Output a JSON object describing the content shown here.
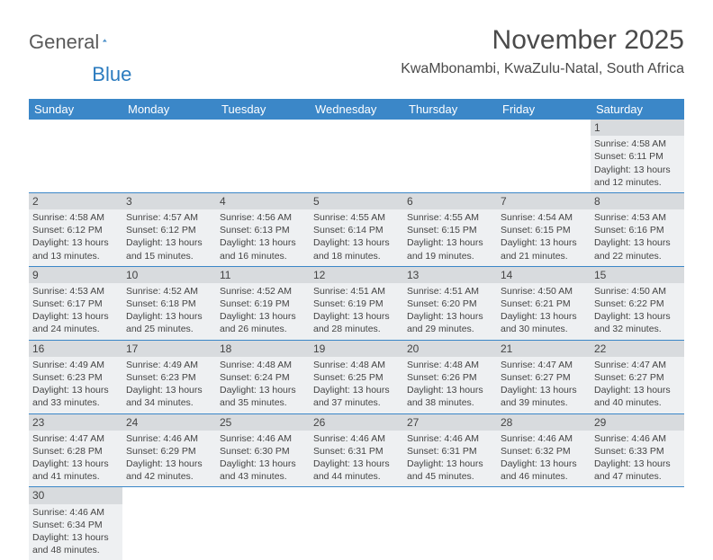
{
  "logo": {
    "word1": "General",
    "word2": "Blue"
  },
  "title": "November 2025",
  "subtitle": "KwaMbonambi, KwaZulu-Natal, South Africa",
  "colors": {
    "header_bg": "#3b87c8",
    "header_fg": "#ffffff",
    "daynum_bg": "#d8dbde",
    "day_bg": "#eef0f2",
    "rule": "#3b87c8",
    "text": "#444444",
    "title_color": "#4a4a4a"
  },
  "day_labels": [
    "Sunday",
    "Monday",
    "Tuesday",
    "Wednesday",
    "Thursday",
    "Friday",
    "Saturday"
  ],
  "weeks": [
    [
      {
        "n": "",
        "empty": true
      },
      {
        "n": "",
        "empty": true
      },
      {
        "n": "",
        "empty": true
      },
      {
        "n": "",
        "empty": true
      },
      {
        "n": "",
        "empty": true
      },
      {
        "n": "",
        "empty": true
      },
      {
        "n": "1",
        "sunrise": "Sunrise: 4:58 AM",
        "sunset": "Sunset: 6:11 PM",
        "day1": "Daylight: 13 hours",
        "day2": "and 12 minutes."
      }
    ],
    [
      {
        "n": "2",
        "sunrise": "Sunrise: 4:58 AM",
        "sunset": "Sunset: 6:12 PM",
        "day1": "Daylight: 13 hours",
        "day2": "and 13 minutes."
      },
      {
        "n": "3",
        "sunrise": "Sunrise: 4:57 AM",
        "sunset": "Sunset: 6:12 PM",
        "day1": "Daylight: 13 hours",
        "day2": "and 15 minutes."
      },
      {
        "n": "4",
        "sunrise": "Sunrise: 4:56 AM",
        "sunset": "Sunset: 6:13 PM",
        "day1": "Daylight: 13 hours",
        "day2": "and 16 minutes."
      },
      {
        "n": "5",
        "sunrise": "Sunrise: 4:55 AM",
        "sunset": "Sunset: 6:14 PM",
        "day1": "Daylight: 13 hours",
        "day2": "and 18 minutes."
      },
      {
        "n": "6",
        "sunrise": "Sunrise: 4:55 AM",
        "sunset": "Sunset: 6:15 PM",
        "day1": "Daylight: 13 hours",
        "day2": "and 19 minutes."
      },
      {
        "n": "7",
        "sunrise": "Sunrise: 4:54 AM",
        "sunset": "Sunset: 6:15 PM",
        "day1": "Daylight: 13 hours",
        "day2": "and 21 minutes."
      },
      {
        "n": "8",
        "sunrise": "Sunrise: 4:53 AM",
        "sunset": "Sunset: 6:16 PM",
        "day1": "Daylight: 13 hours",
        "day2": "and 22 minutes."
      }
    ],
    [
      {
        "n": "9",
        "sunrise": "Sunrise: 4:53 AM",
        "sunset": "Sunset: 6:17 PM",
        "day1": "Daylight: 13 hours",
        "day2": "and 24 minutes."
      },
      {
        "n": "10",
        "sunrise": "Sunrise: 4:52 AM",
        "sunset": "Sunset: 6:18 PM",
        "day1": "Daylight: 13 hours",
        "day2": "and 25 minutes."
      },
      {
        "n": "11",
        "sunrise": "Sunrise: 4:52 AM",
        "sunset": "Sunset: 6:19 PM",
        "day1": "Daylight: 13 hours",
        "day2": "and 26 minutes."
      },
      {
        "n": "12",
        "sunrise": "Sunrise: 4:51 AM",
        "sunset": "Sunset: 6:19 PM",
        "day1": "Daylight: 13 hours",
        "day2": "and 28 minutes."
      },
      {
        "n": "13",
        "sunrise": "Sunrise: 4:51 AM",
        "sunset": "Sunset: 6:20 PM",
        "day1": "Daylight: 13 hours",
        "day2": "and 29 minutes."
      },
      {
        "n": "14",
        "sunrise": "Sunrise: 4:50 AM",
        "sunset": "Sunset: 6:21 PM",
        "day1": "Daylight: 13 hours",
        "day2": "and 30 minutes."
      },
      {
        "n": "15",
        "sunrise": "Sunrise: 4:50 AM",
        "sunset": "Sunset: 6:22 PM",
        "day1": "Daylight: 13 hours",
        "day2": "and 32 minutes."
      }
    ],
    [
      {
        "n": "16",
        "sunrise": "Sunrise: 4:49 AM",
        "sunset": "Sunset: 6:23 PM",
        "day1": "Daylight: 13 hours",
        "day2": "and 33 minutes."
      },
      {
        "n": "17",
        "sunrise": "Sunrise: 4:49 AM",
        "sunset": "Sunset: 6:23 PM",
        "day1": "Daylight: 13 hours",
        "day2": "and 34 minutes."
      },
      {
        "n": "18",
        "sunrise": "Sunrise: 4:48 AM",
        "sunset": "Sunset: 6:24 PM",
        "day1": "Daylight: 13 hours",
        "day2": "and 35 minutes."
      },
      {
        "n": "19",
        "sunrise": "Sunrise: 4:48 AM",
        "sunset": "Sunset: 6:25 PM",
        "day1": "Daylight: 13 hours",
        "day2": "and 37 minutes."
      },
      {
        "n": "20",
        "sunrise": "Sunrise: 4:48 AM",
        "sunset": "Sunset: 6:26 PM",
        "day1": "Daylight: 13 hours",
        "day2": "and 38 minutes."
      },
      {
        "n": "21",
        "sunrise": "Sunrise: 4:47 AM",
        "sunset": "Sunset: 6:27 PM",
        "day1": "Daylight: 13 hours",
        "day2": "and 39 minutes."
      },
      {
        "n": "22",
        "sunrise": "Sunrise: 4:47 AM",
        "sunset": "Sunset: 6:27 PM",
        "day1": "Daylight: 13 hours",
        "day2": "and 40 minutes."
      }
    ],
    [
      {
        "n": "23",
        "sunrise": "Sunrise: 4:47 AM",
        "sunset": "Sunset: 6:28 PM",
        "day1": "Daylight: 13 hours",
        "day2": "and 41 minutes."
      },
      {
        "n": "24",
        "sunrise": "Sunrise: 4:46 AM",
        "sunset": "Sunset: 6:29 PM",
        "day1": "Daylight: 13 hours",
        "day2": "and 42 minutes."
      },
      {
        "n": "25",
        "sunrise": "Sunrise: 4:46 AM",
        "sunset": "Sunset: 6:30 PM",
        "day1": "Daylight: 13 hours",
        "day2": "and 43 minutes."
      },
      {
        "n": "26",
        "sunrise": "Sunrise: 4:46 AM",
        "sunset": "Sunset: 6:31 PM",
        "day1": "Daylight: 13 hours",
        "day2": "and 44 minutes."
      },
      {
        "n": "27",
        "sunrise": "Sunrise: 4:46 AM",
        "sunset": "Sunset: 6:31 PM",
        "day1": "Daylight: 13 hours",
        "day2": "and 45 minutes."
      },
      {
        "n": "28",
        "sunrise": "Sunrise: 4:46 AM",
        "sunset": "Sunset: 6:32 PM",
        "day1": "Daylight: 13 hours",
        "day2": "and 46 minutes."
      },
      {
        "n": "29",
        "sunrise": "Sunrise: 4:46 AM",
        "sunset": "Sunset: 6:33 PM",
        "day1": "Daylight: 13 hours",
        "day2": "and 47 minutes."
      }
    ],
    [
      {
        "n": "30",
        "sunrise": "Sunrise: 4:46 AM",
        "sunset": "Sunset: 6:34 PM",
        "day1": "Daylight: 13 hours",
        "day2": "and 48 minutes."
      },
      {
        "n": "",
        "empty": true
      },
      {
        "n": "",
        "empty": true
      },
      {
        "n": "",
        "empty": true
      },
      {
        "n": "",
        "empty": true
      },
      {
        "n": "",
        "empty": true
      },
      {
        "n": "",
        "empty": true
      }
    ]
  ]
}
